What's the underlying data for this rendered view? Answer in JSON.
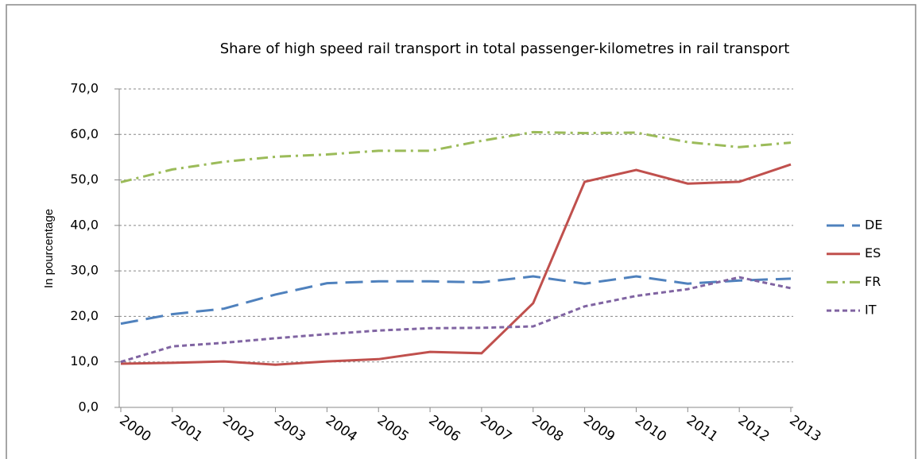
{
  "chart_data": {
    "type": "line",
    "title": "Share of high speed rail transport in total passenger-kilometres in rail transport",
    "y_label": "In pourcentage",
    "categories": [
      "2000",
      "2001",
      "2002",
      "2003",
      "2004",
      "2005",
      "2006",
      "2007",
      "2008",
      "2009",
      "2010",
      "2011",
      "2012",
      "2013"
    ],
    "series": [
      {
        "name": "DE",
        "color": "#4f81bd",
        "dash": "22,10",
        "values": [
          18.4,
          20.5,
          21.7,
          24.8,
          27.3,
          27.7,
          27.7,
          27.5,
          28.8,
          27.2,
          28.8,
          27.2,
          27.9,
          28.3
        ]
      },
      {
        "name": "ES",
        "color": "#c0504d",
        "dash": "none",
        "values": [
          9.6,
          9.8,
          10.1,
          9.4,
          10.1,
          10.6,
          12.2,
          11.9,
          22.9,
          49.6,
          52.2,
          49.2,
          49.6,
          53.4
        ]
      },
      {
        "name": "FR",
        "color": "#9bbb59",
        "dash": "14,6,3,6",
        "values": [
          49.5,
          52.3,
          54.0,
          55.1,
          55.6,
          56.4,
          56.4,
          58.6,
          60.5,
          60.3,
          60.4,
          58.3,
          57.2,
          58.2
        ]
      },
      {
        "name": "IT",
        "color": "#8064a2",
        "dash": "6,4",
        "values": [
          10.0,
          13.4,
          14.2,
          15.2,
          16.1,
          16.9,
          17.4,
          17.5,
          17.8,
          22.2,
          24.5,
          26.0,
          28.6,
          26.2
        ]
      }
    ],
    "ylim": [
      0,
      70
    ],
    "yticks": [
      {
        "value": 0,
        "label": "0,0"
      },
      {
        "value": 10,
        "label": "10,0"
      },
      {
        "value": 20,
        "label": "20,0"
      },
      {
        "value": 30,
        "label": "30,0"
      },
      {
        "value": 40,
        "label": "40,0"
      },
      {
        "value": 50,
        "label": "50,0"
      },
      {
        "value": 60,
        "label": "60,0"
      },
      {
        "value": 70,
        "label": "70,0"
      }
    ],
    "grid": true,
    "legend": "right"
  }
}
